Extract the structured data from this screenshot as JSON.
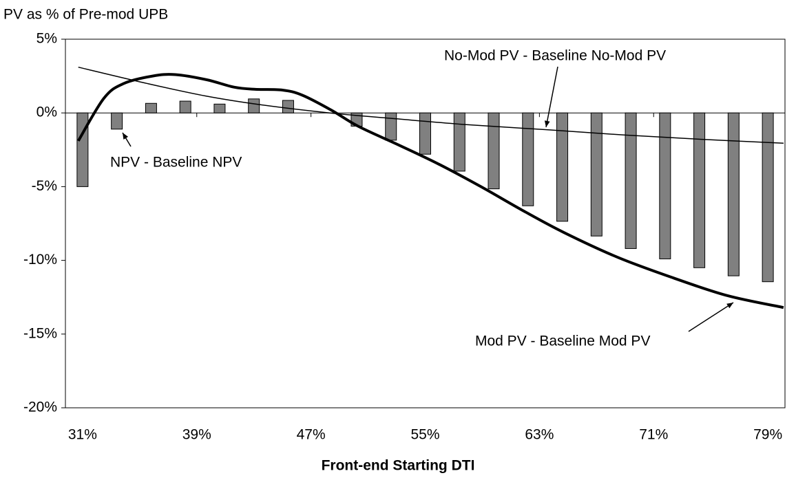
{
  "chart_data": {
    "type": "bar",
    "y_axis_title": "PV as % of Pre-mod UPB",
    "x_axis_title": "Front-end Starting DTI",
    "xlim": [
      29.8,
      80.2
    ],
    "xticks": [
      {
        "value": 31,
        "label": "31%"
      },
      {
        "value": 39,
        "label": "39%"
      },
      {
        "value": 47,
        "label": "47%"
      },
      {
        "value": 55,
        "label": "55%"
      },
      {
        "value": 63,
        "label": "63%"
      },
      {
        "value": 71,
        "label": "71%"
      },
      {
        "value": 79,
        "label": "79%"
      }
    ],
    "ylim": [
      -20,
      5
    ],
    "yticks": [
      {
        "value": -20,
        "label": "-20%"
      },
      {
        "value": -15,
        "label": "-15%"
      },
      {
        "value": -10,
        "label": "-10%"
      },
      {
        "value": -5,
        "label": "-5%"
      },
      {
        "value": 0,
        "label": "0%"
      },
      {
        "value": 5,
        "label": "5%"
      }
    ],
    "series": [
      {
        "name": "NPV - Baseline NPV",
        "type": "bar",
        "color": "#808080",
        "x": [
          31,
          33.4,
          35.8,
          38.2,
          40.6,
          43,
          45.4,
          47.8,
          50.2,
          52.6,
          55,
          57.4,
          59.8,
          62.2,
          64.6,
          67,
          69.4,
          71.8,
          74.2,
          76.6,
          79
        ],
        "values": [
          -5.0,
          -1.1,
          0.65,
          0.8,
          0.6,
          0.95,
          0.85,
          0,
          -0.9,
          -1.85,
          -2.8,
          -3.95,
          -5.15,
          -6.3,
          -7.35,
          -8.35,
          -9.2,
          -9.9,
          -10.5,
          -11.05,
          -11.45
        ]
      },
      {
        "name": "No-Mod PV - Baseline No-Mod PV",
        "type": "line",
        "color": "#000000",
        "x": [
          30.7,
          35.5,
          39.6,
          43.5,
          48.3,
          53,
          58,
          63.7,
          69,
          74.5,
          80.1
        ],
        "values": [
          3.1,
          2.0,
          1.15,
          0.55,
          0,
          -0.4,
          -0.8,
          -1.15,
          -1.5,
          -1.8,
          -2.05
        ]
      },
      {
        "name": "Mod PV - Baseline Mod PV",
        "type": "line",
        "color": "#000000",
        "x": [
          30.7,
          32.5,
          33.9,
          35.9,
          37.5,
          39.7,
          41.6,
          43.1,
          45,
          46.4,
          48.4,
          50.3,
          53.2,
          56,
          58.9,
          61.8,
          64.7,
          68.5,
          72.4,
          76.2,
          80.1
        ],
        "values": [
          -1.9,
          1.0,
          2.0,
          2.5,
          2.6,
          2.25,
          1.75,
          1.6,
          1.55,
          1.2,
          0.2,
          -0.9,
          -2.2,
          -3.5,
          -5.0,
          -6.6,
          -8.1,
          -9.8,
          -11.2,
          -12.4,
          -13.2
        ]
      }
    ]
  }
}
